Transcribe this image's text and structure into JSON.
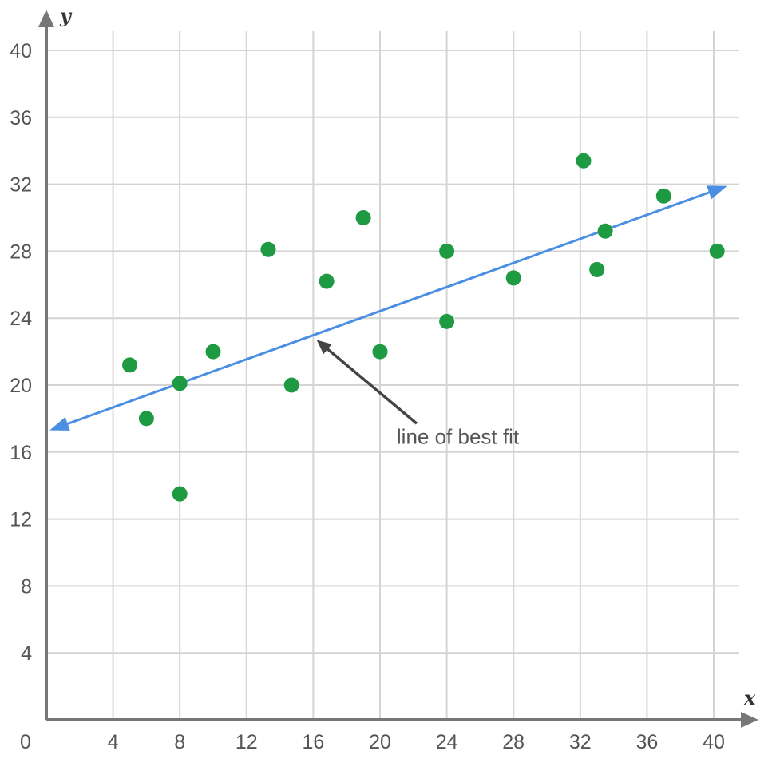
{
  "chart_data": {
    "type": "scatter",
    "title": "",
    "xlabel": "x",
    "ylabel": "y",
    "xlim": [
      0,
      40
    ],
    "ylim": [
      0,
      40
    ],
    "grid": true,
    "origin_label": "0",
    "x_ticks": [
      4,
      8,
      12,
      16,
      20,
      24,
      28,
      32,
      36,
      40
    ],
    "y_ticks": [
      4,
      8,
      12,
      16,
      20,
      24,
      28,
      32,
      36,
      40
    ],
    "colors": {
      "points": "#1e9a42",
      "fit_line": "#4a8fe2",
      "grid": "#d4d4d4",
      "axis": "#777777",
      "annotation_arrow": "#444444"
    },
    "points": [
      {
        "x": 5,
        "y": 21.2
      },
      {
        "x": 6,
        "y": 18
      },
      {
        "x": 8,
        "y": 20.1
      },
      {
        "x": 8,
        "y": 13.5
      },
      {
        "x": 10,
        "y": 22
      },
      {
        "x": 13.3,
        "y": 28.1
      },
      {
        "x": 14.7,
        "y": 20
      },
      {
        "x": 16.8,
        "y": 26.2
      },
      {
        "x": 19,
        "y": 30
      },
      {
        "x": 20,
        "y": 22
      },
      {
        "x": 24,
        "y": 28
      },
      {
        "x": 24,
        "y": 23.8
      },
      {
        "x": 28,
        "y": 26.4
      },
      {
        "x": 32.2,
        "y": 33.4
      },
      {
        "x": 33,
        "y": 26.9
      },
      {
        "x": 33.5,
        "y": 29.2
      },
      {
        "x": 37,
        "y": 31.3
      },
      {
        "x": 40.2,
        "y": 28
      }
    ],
    "fit_line": {
      "from": [
        0.2,
        17.3
      ],
      "to": [
        40.8,
        31.9
      ]
    },
    "annotation": {
      "text": "line of best fit",
      "text_at": [
        21,
        16.5
      ],
      "arrow_from": [
        22.2,
        17.7
      ],
      "arrow_to": [
        16.2,
        22.7
      ]
    }
  }
}
